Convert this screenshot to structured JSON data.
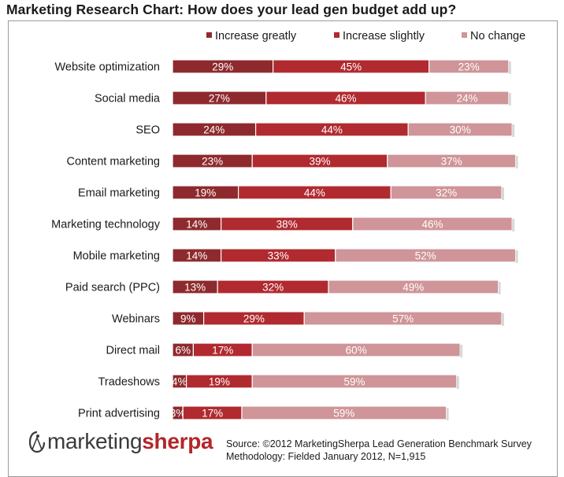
{
  "title": "Marketing Research Chart: How does your lead gen budget add up?",
  "colors": {
    "increase_greatly": "#8e2a2e",
    "increase_slightly": "#b02a30",
    "no_change": "#cf9598"
  },
  "chart_data": {
    "type": "bar",
    "orientation": "horizontal",
    "stacked": true,
    "title": "Marketing Research Chart: How does your lead gen budget add up?",
    "xlabel": "",
    "ylabel": "",
    "xlim": [
      0,
      100
    ],
    "legend_position": "top",
    "categories": [
      "Website optimization",
      "Social media",
      "SEO",
      "Content marketing",
      "Email marketing",
      "Marketing technology",
      "Mobile marketing",
      "Paid search (PPC)",
      "Webinars",
      "Direct mail",
      "Tradeshows",
      "Print advertising"
    ],
    "series": [
      {
        "name": "Increase greatly",
        "values": [
          29,
          27,
          24,
          23,
          19,
          14,
          14,
          13,
          9,
          6,
          4,
          3
        ]
      },
      {
        "name": "Increase slightly",
        "values": [
          45,
          46,
          44,
          39,
          44,
          38,
          33,
          32,
          29,
          17,
          19,
          17
        ]
      },
      {
        "name": "No change",
        "values": [
          23,
          24,
          30,
          37,
          32,
          46,
          52,
          49,
          57,
          60,
          59,
          59
        ]
      }
    ],
    "value_suffix": "%"
  },
  "logo": {
    "part1": "marketing",
    "part2": "sherpa"
  },
  "source": {
    "line1": "Source: ©2012 MarketingSherpa Lead Generation Benchmark Survey",
    "line2": "Methodology: Fielded January 2012, N=1,915"
  }
}
